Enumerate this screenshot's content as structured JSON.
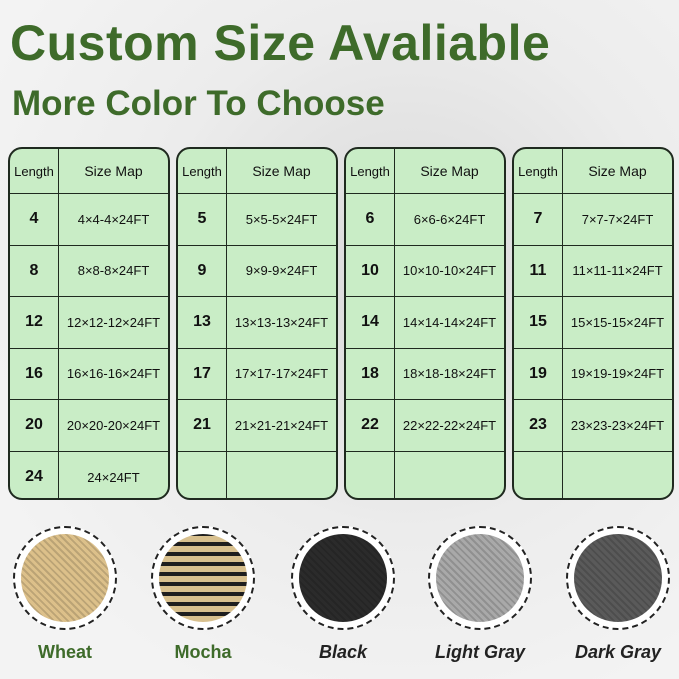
{
  "title": "Custom Size Avaliable",
  "subtitle": "More Color To Choose",
  "table_header": {
    "length": "Length",
    "size_map": "Size Map"
  },
  "tables": [
    {
      "rows": [
        [
          "4",
          "4×4-4×24FT"
        ],
        [
          "8",
          "8×8-8×24FT"
        ],
        [
          "12",
          "12×12-12×24FT"
        ],
        [
          "16",
          "16×16-16×24FT"
        ],
        [
          "20",
          "20×20-20×24FT"
        ],
        [
          "24",
          "24×24FT"
        ]
      ]
    },
    {
      "rows": [
        [
          "5",
          "5×5-5×24FT"
        ],
        [
          "9",
          "9×9-9×24FT"
        ],
        [
          "13",
          "13×13-13×24FT"
        ],
        [
          "17",
          "17×17-17×24FT"
        ],
        [
          "21",
          "21×21-21×24FT"
        ],
        [
          "",
          ""
        ]
      ]
    },
    {
      "rows": [
        [
          "6",
          "6×6-6×24FT"
        ],
        [
          "10",
          "10×10-10×24FT"
        ],
        [
          "14",
          "14×14-14×24FT"
        ],
        [
          "18",
          "18×18-18×24FT"
        ],
        [
          "22",
          "22×22-22×24FT"
        ],
        [
          "",
          ""
        ]
      ]
    },
    {
      "rows": [
        [
          "7",
          "7×7-7×24FT"
        ],
        [
          "11",
          "11×11-11×24FT"
        ],
        [
          "15",
          "15×15-15×24FT"
        ],
        [
          "19",
          "19×19-19×24FT"
        ],
        [
          "23",
          "23×23-23×24FT"
        ],
        [
          "",
          ""
        ]
      ]
    }
  ],
  "colors": [
    {
      "name": "Wheat",
      "swatch": "#dcc08a"
    },
    {
      "name": "Mocha",
      "swatch": "#9c8460"
    },
    {
      "name": "Black",
      "swatch": "#2b2b2b"
    },
    {
      "name": "Light Gray",
      "swatch": "#a9a9a9"
    },
    {
      "name": "Dark Gray",
      "swatch": "#5a5a5a"
    }
  ],
  "accent": "#3e6b2a"
}
